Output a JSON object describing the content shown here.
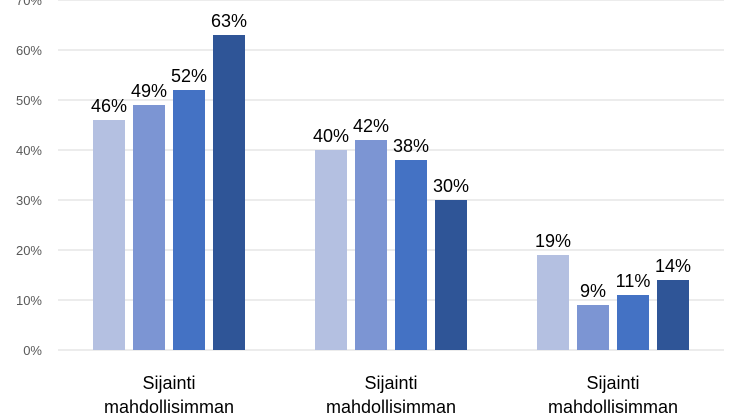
{
  "chart_data": {
    "type": "bar",
    "categories": [
      [
        "Sijainti",
        "mahdollisimman"
      ],
      [
        "Sijainti",
        "mahdollisimman"
      ],
      [
        "Sijainti",
        "mahdollisimman"
      ]
    ],
    "series": [
      {
        "values": [
          46,
          40,
          19
        ],
        "color": "#b4c0e1"
      },
      {
        "values": [
          49,
          42,
          9
        ],
        "color": "#7c95d3"
      },
      {
        "values": [
          52,
          38,
          11
        ],
        "color": "#4472c4"
      },
      {
        "values": [
          63,
          30,
          14
        ],
        "color": "#2f5597"
      }
    ],
    "data_labels": [
      [
        "46%",
        "40%",
        "19%"
      ],
      [
        "49%",
        "42%",
        "9%"
      ],
      [
        "52%",
        "38%",
        "11%"
      ],
      [
        "63%",
        "30%",
        "14%"
      ]
    ],
    "y_ticks": [
      "0%",
      "10%",
      "20%",
      "30%",
      "40%",
      "50%",
      "60%",
      "70%"
    ],
    "ylim": [
      0,
      70
    ],
    "grid": true,
    "gridline_color": "#d9d9d9",
    "title": "",
    "xlabel": "",
    "ylabel": ""
  }
}
